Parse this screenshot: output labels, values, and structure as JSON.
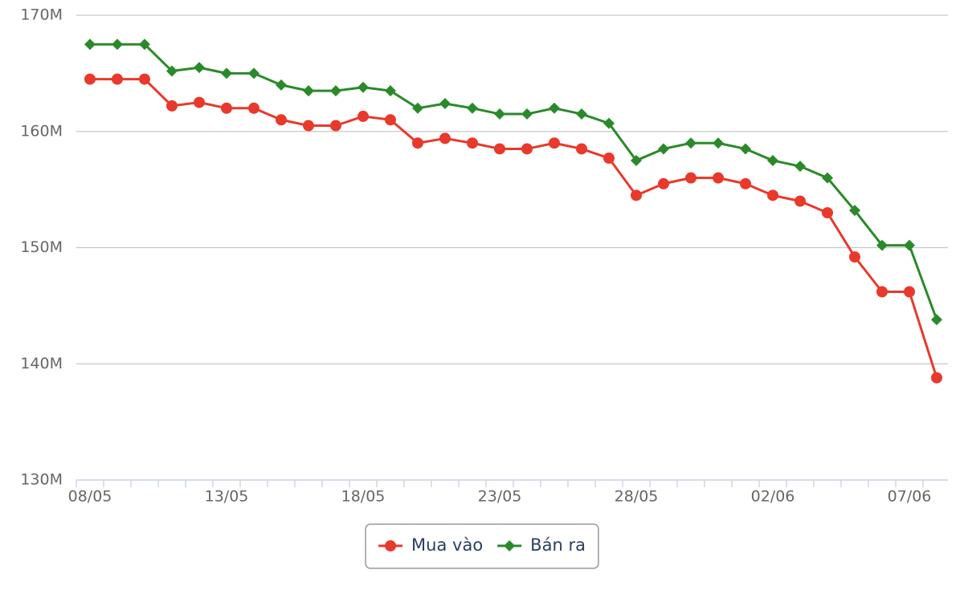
{
  "chart_data": {
    "type": "line",
    "categories": [
      "08/05",
      null,
      null,
      null,
      null,
      "13/05",
      null,
      null,
      null,
      null,
      "18/05",
      null,
      null,
      null,
      null,
      "23/05",
      null,
      null,
      null,
      null,
      "28/05",
      null,
      null,
      null,
      null,
      "02/06",
      null,
      null,
      null,
      null,
      "07/06",
      null
    ],
    "series": [
      {
        "name": "Mua vào",
        "color": "#e8392b",
        "marker": "circle",
        "values": [
          164.5,
          164.5,
          164.5,
          162.2,
          162.5,
          162,
          162,
          161,
          160.5,
          160.5,
          161.3,
          161,
          159,
          159.4,
          159,
          158.5,
          158.5,
          159,
          158.5,
          157.7,
          154.5,
          155.5,
          156,
          156,
          155.5,
          154.5,
          154,
          153,
          149.2,
          146.2,
          146.2,
          138.8
        ]
      },
      {
        "name": "Bán ra",
        "color": "#2a8a2a",
        "marker": "diamond",
        "values": [
          167.5,
          167.5,
          167.5,
          165.2,
          165.5,
          165,
          165,
          164,
          163.5,
          163.5,
          163.8,
          163.5,
          162,
          162.4,
          162,
          161.5,
          161.5,
          162,
          161.5,
          160.7,
          157.5,
          158.5,
          159,
          159,
          158.5,
          157.5,
          157,
          156,
          153.2,
          150.2,
          150.2,
          143.8
        ]
      }
    ],
    "ylim": [
      130,
      170
    ],
    "yticks": [
      {
        "value": 130,
        "label": "130M"
      },
      {
        "value": 140,
        "label": "140M"
      },
      {
        "value": 150,
        "label": "150M"
      },
      {
        "value": 160,
        "label": "160M"
      },
      {
        "value": 170,
        "label": "170M"
      }
    ],
    "grid": true,
    "legend": "bottom"
  }
}
